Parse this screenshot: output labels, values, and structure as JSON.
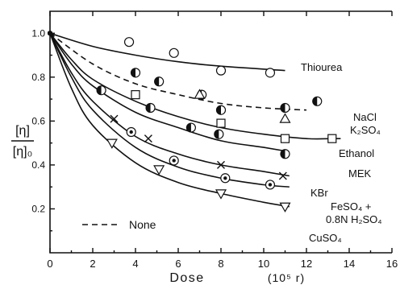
{
  "chart_data": {
    "type": "line",
    "xlabel": "Dose",
    "xunit": "(10⁵ r)",
    "ylabel_num": "[η]",
    "ylabel_den": "[η]₀",
    "xlim": [
      0,
      16
    ],
    "ylim": [
      0,
      1.1
    ],
    "xticks": [
      0,
      2,
      4,
      6,
      8,
      10,
      12,
      14,
      16
    ],
    "yticks": [
      0.2,
      0.4,
      0.6,
      0.8,
      1.0
    ],
    "ytick_labels": [
      "0.2",
      "0.4",
      "0.6",
      "0.8",
      "1.0"
    ],
    "legend": {
      "text": "None",
      "style": "dashed"
    },
    "series": [
      {
        "label_lines": [
          "Thiourea"
        ],
        "marker": "circle-open",
        "style": "solid",
        "points": [
          [
            0,
            1.0
          ],
          [
            3.7,
            0.96
          ],
          [
            5.8,
            0.91
          ],
          [
            8.0,
            0.83
          ],
          [
            10.3,
            0.82
          ]
        ],
        "curve": [
          [
            0,
            1.0
          ],
          [
            2,
            0.94
          ],
          [
            4,
            0.9
          ],
          [
            6,
            0.87
          ],
          [
            8,
            0.85
          ],
          [
            11,
            0.83
          ]
        ]
      },
      {
        "label_lines": [
          "NaCl",
          "K₂SO₄"
        ],
        "marker": "half-circle",
        "style": "dashed",
        "points": [
          [
            0,
            1.0
          ],
          [
            4.0,
            0.82
          ],
          [
            5.1,
            0.78
          ],
          [
            7.1,
            0.72
          ],
          [
            8.0,
            0.65
          ],
          [
            11.0,
            0.66
          ],
          [
            12.5,
            0.69
          ]
        ],
        "points2": [
          [
            7.0,
            0.72
          ],
          [
            11.0,
            0.61
          ]
        ],
        "curve": [
          [
            0,
            1.0
          ],
          [
            2,
            0.86
          ],
          [
            4,
            0.77
          ],
          [
            6,
            0.72
          ],
          [
            8,
            0.68
          ],
          [
            10,
            0.66
          ],
          [
            12,
            0.65
          ]
        ]
      },
      {
        "label_lines": [
          "Ethanol"
        ],
        "marker": "square-open",
        "style": "solid",
        "points": [
          [
            0,
            1.0
          ],
          [
            4.0,
            0.72
          ],
          [
            8.0,
            0.59
          ],
          [
            11.0,
            0.52
          ],
          [
            13.2,
            0.52
          ]
        ],
        "curve": [
          [
            0,
            1.0
          ],
          [
            1,
            0.88
          ],
          [
            2,
            0.79
          ],
          [
            4,
            0.69
          ],
          [
            6,
            0.62
          ],
          [
            8,
            0.57
          ],
          [
            10,
            0.54
          ],
          [
            12,
            0.52
          ],
          [
            13.2,
            0.52
          ]
        ]
      },
      {
        "label_lines": [
          "MEK"
        ],
        "marker": "half-circle",
        "style": "solid",
        "points": [
          [
            0,
            1.0
          ],
          [
            2.4,
            0.74
          ],
          [
            4.7,
            0.66
          ],
          [
            6.6,
            0.57
          ],
          [
            7.9,
            0.54
          ],
          [
            11.0,
            0.45
          ]
        ],
        "curve": [
          [
            0,
            1.0
          ],
          [
            1,
            0.86
          ],
          [
            2,
            0.76
          ],
          [
            4,
            0.64
          ],
          [
            6,
            0.57
          ],
          [
            8,
            0.51
          ],
          [
            10,
            0.48
          ],
          [
            11.2,
            0.46
          ]
        ]
      },
      {
        "label_lines": [
          "KBr"
        ],
        "marker": "x",
        "style": "solid",
        "points": [
          [
            0,
            1.0
          ],
          [
            3.0,
            0.61
          ],
          [
            4.6,
            0.52
          ],
          [
            8.0,
            0.4
          ],
          [
            10.9,
            0.35
          ]
        ],
        "curve": [
          [
            0,
            1.0
          ],
          [
            1,
            0.82
          ],
          [
            2,
            0.69
          ],
          [
            4,
            0.53
          ],
          [
            6,
            0.45
          ],
          [
            8,
            0.4
          ],
          [
            10,
            0.37
          ],
          [
            11.2,
            0.35
          ]
        ]
      },
      {
        "label_lines": [
          "FeSO₄ +",
          "0.8N H₂SO₄"
        ],
        "marker": "dot-circle",
        "style": "solid",
        "points": [
          [
            0,
            1.0
          ],
          [
            3.8,
            0.55
          ],
          [
            5.8,
            0.42
          ],
          [
            8.2,
            0.34
          ],
          [
            10.3,
            0.31
          ]
        ],
        "curve": [
          [
            0,
            1.0
          ],
          [
            1,
            0.8
          ],
          [
            2,
            0.65
          ],
          [
            4,
            0.48
          ],
          [
            6,
            0.39
          ],
          [
            8,
            0.34
          ],
          [
            10,
            0.31
          ],
          [
            11.2,
            0.3
          ]
        ]
      },
      {
        "label_lines": [
          "CuSO₄"
        ],
        "marker": "triangle-down",
        "style": "solid",
        "points": [
          [
            0,
            1.0
          ],
          [
            2.9,
            0.5
          ],
          [
            5.1,
            0.38
          ],
          [
            8.0,
            0.27
          ],
          [
            11.0,
            0.21
          ]
        ],
        "curve": [
          [
            0,
            1.0
          ],
          [
            1,
            0.75
          ],
          [
            2,
            0.58
          ],
          [
            4,
            0.41
          ],
          [
            6,
            0.32
          ],
          [
            8,
            0.27
          ],
          [
            10,
            0.23
          ],
          [
            11.2,
            0.21
          ]
        ]
      }
    ]
  }
}
